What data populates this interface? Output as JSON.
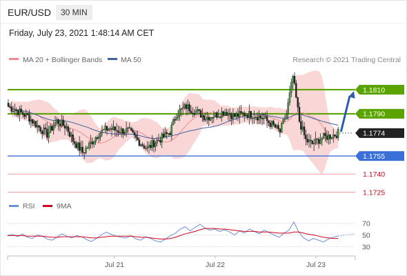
{
  "header": {
    "symbol": "EUR/USD",
    "timeframe": "30 MIN",
    "datetime": "Friday, July 23, 2021 1:48:14 AM CET"
  },
  "legend": {
    "bollinger_label": "MA 20 + Bollinger Bands",
    "ma50_label": "MA 50",
    "copyright": "Research © 2021 Trading Central"
  },
  "rsi_legend": {
    "rsi_label": "RSI",
    "ma_label": "9MA"
  },
  "colors": {
    "up_level": "#5aa300",
    "support": "#3a6fd8",
    "red_level": "#d0021b",
    "current": "#222222",
    "arrow": "#2b5caf",
    "bollinger": "#f7c9c9",
    "ma20": "#f08c8c",
    "ma50": "#3f5f9f",
    "rsi": "#6b8fd9",
    "rsi_ma": "#d0021b"
  },
  "chart_data": {
    "type": "candlestick",
    "price_range": [
      1.1715,
      1.183
    ],
    "x_labels": [
      "Jul 21",
      "Jul 22",
      "Jul 23"
    ],
    "levels": [
      {
        "value": 1.181,
        "label": "1.1810",
        "style": "resistance"
      },
      {
        "value": 1.179,
        "label": "1.1790",
        "style": "resistance"
      },
      {
        "value": 1.1774,
        "label": "1.1774",
        "style": "current"
      },
      {
        "value": 1.1755,
        "label": "1.1755",
        "style": "support"
      },
      {
        "value": 1.174,
        "label": "1.1740",
        "style": "minor"
      },
      {
        "value": 1.1725,
        "label": "1.1725",
        "style": "minor"
      }
    ],
    "close_path": [
      [
        0,
        1.1796
      ],
      [
        6,
        1.1792
      ],
      [
        12,
        1.1788
      ],
      [
        18,
        1.178
      ],
      [
        24,
        1.1773
      ],
      [
        30,
        1.1784
      ],
      [
        36,
        1.1779
      ],
      [
        40,
        1.1768
      ],
      [
        46,
        1.1758
      ],
      [
        50,
        1.1764
      ],
      [
        56,
        1.1774
      ],
      [
        62,
        1.1778
      ],
      [
        68,
        1.1776
      ],
      [
        74,
        1.1776
      ],
      [
        80,
        1.1768
      ],
      [
        86,
        1.1761
      ],
      [
        90,
        1.1766
      ],
      [
        95,
        1.177
      ],
      [
        100,
        1.1775
      ],
      [
        104,
        1.179
      ],
      [
        110,
        1.1796
      ],
      [
        116,
        1.1792
      ],
      [
        122,
        1.1787
      ],
      [
        128,
        1.1789
      ],
      [
        134,
        1.1792
      ],
      [
        140,
        1.1788
      ],
      [
        146,
        1.179
      ],
      [
        152,
        1.1789
      ],
      [
        158,
        1.1786
      ],
      [
        164,
        1.178
      ],
      [
        168,
        1.1775
      ],
      [
        172,
        1.179
      ],
      [
        176,
        1.1821
      ],
      [
        180,
        1.1784
      ],
      [
        184,
        1.1768
      ],
      [
        188,
        1.1765
      ],
      [
        194,
        1.177
      ],
      [
        200,
        1.1772
      ],
      [
        204,
        1.1774
      ]
    ],
    "projection": {
      "from": 1.1774,
      "to": 1.181
    },
    "rsi": {
      "levels": [
        70,
        50,
        30
      ],
      "range": [
        20,
        80
      ],
      "values": [
        49,
        51,
        47,
        52,
        46,
        44,
        50,
        48,
        43,
        41,
        46,
        52,
        48,
        45,
        49,
        47,
        42,
        39,
        44,
        50,
        55,
        51,
        48,
        46,
        45,
        49,
        43,
        41,
        47,
        44,
        40,
        38,
        43,
        49,
        53,
        60,
        64,
        57,
        63,
        68,
        62,
        58,
        60,
        56,
        59,
        55,
        50,
        57,
        53,
        60,
        56,
        52,
        58,
        54,
        50,
        46,
        53,
        58,
        72,
        55,
        45,
        40,
        44,
        41,
        38,
        43,
        46,
        48
      ],
      "ma_values": [
        49,
        49,
        49,
        49,
        48,
        48,
        48,
        48,
        47,
        46,
        46,
        47,
        47,
        47,
        47,
        47,
        46,
        45,
        45,
        46,
        47,
        48,
        48,
        48,
        48,
        48,
        47,
        46,
        46,
        45,
        44,
        43,
        43,
        44,
        46,
        49,
        52,
        54,
        56,
        59,
        61,
        61,
        61,
        60,
        60,
        59,
        58,
        57,
        56,
        56,
        56,
        55,
        55,
        55,
        54,
        53,
        53,
        53,
        55,
        55,
        53,
        51,
        50,
        48,
        46,
        45,
        44,
        44
      ]
    }
  }
}
